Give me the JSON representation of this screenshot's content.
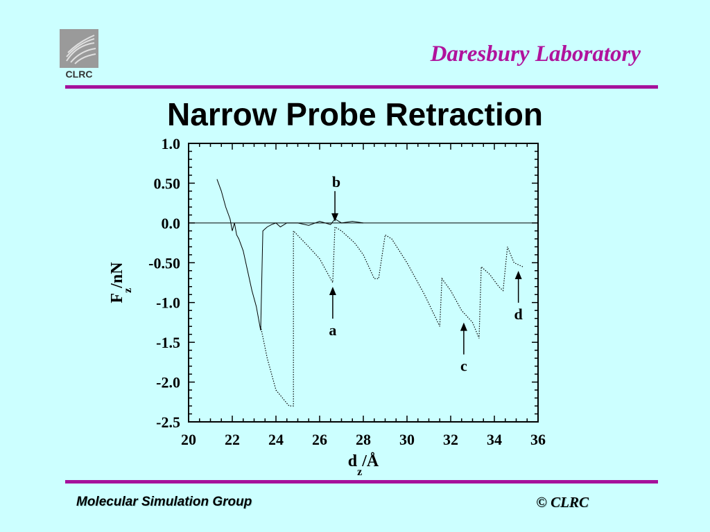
{
  "header": {
    "logo_text": "CLRC",
    "organization": "Daresbury Laboratory"
  },
  "page_title": "Narrow Probe Retraction",
  "footer": {
    "group": "Molecular Simulation Group",
    "copyright": "© CLRC"
  },
  "chart_data": {
    "type": "line",
    "xlabel": "d",
    "xlabel_sub": "z",
    "xlabel_unit": "/Å",
    "ylabel": "F",
    "ylabel_sub": "z",
    "ylabel_unit": "/nN",
    "xlim": [
      20,
      36
    ],
    "ylim": [
      -2.5,
      1.0
    ],
    "x_ticks": [
      20,
      22,
      24,
      26,
      28,
      30,
      32,
      34,
      36
    ],
    "x_tick_labels": [
      "20",
      "22",
      "24",
      "26",
      "28",
      "30",
      "32",
      "34",
      "36"
    ],
    "y_ticks": [
      1.0,
      0.5,
      0.0,
      -0.5,
      -1.0,
      -1.5,
      -2.0,
      -2.5
    ],
    "y_tick_labels": [
      "1.0",
      "0.50",
      "0.0",
      "-0.50",
      "-1.0",
      "-1.5",
      "-2.0",
      "-2.5"
    ],
    "zero_line": true,
    "series": [
      {
        "style": "solid",
        "points": [
          [
            21.3,
            0.55
          ],
          [
            21.5,
            0.4
          ],
          [
            21.7,
            0.2
          ],
          [
            21.9,
            0.05
          ],
          [
            22.0,
            -0.1
          ],
          [
            22.1,
            0.0
          ],
          [
            22.2,
            -0.15
          ],
          [
            22.3,
            -0.2
          ],
          [
            22.5,
            -0.35
          ],
          [
            22.7,
            -0.6
          ],
          [
            22.9,
            -0.85
          ],
          [
            23.1,
            -1.05
          ],
          [
            23.3,
            -1.35
          ],
          [
            23.4,
            -0.1
          ],
          [
            23.6,
            -0.05
          ],
          [
            23.8,
            -0.02
          ],
          [
            24.0,
            0.0
          ],
          [
            24.2,
            -0.05
          ],
          [
            24.5,
            0.0
          ],
          [
            25.0,
            0.0
          ],
          [
            25.5,
            -0.03
          ],
          [
            26.0,
            0.02
          ],
          [
            26.5,
            -0.02
          ],
          [
            26.7,
            0.05
          ],
          [
            27.0,
            0.0
          ],
          [
            27.5,
            0.02
          ],
          [
            28.0,
            0.0
          ]
        ]
      },
      {
        "style": "dotted",
        "points": [
          [
            23.3,
            -1.3
          ],
          [
            23.6,
            -1.7
          ],
          [
            24.0,
            -2.1
          ],
          [
            24.3,
            -2.2
          ],
          [
            24.6,
            -2.3
          ],
          [
            24.8,
            -2.3
          ],
          [
            24.8,
            -0.1
          ],
          [
            25.5,
            -0.3
          ],
          [
            26.0,
            -0.45
          ],
          [
            26.6,
            -0.75
          ],
          [
            26.7,
            -0.05
          ],
          [
            27.0,
            -0.1
          ],
          [
            27.6,
            -0.25
          ],
          [
            28.0,
            -0.4
          ],
          [
            28.5,
            -0.7
          ],
          [
            28.7,
            -0.7
          ],
          [
            29.0,
            -0.15
          ],
          [
            29.3,
            -0.2
          ],
          [
            30.0,
            -0.5
          ],
          [
            30.8,
            -0.9
          ],
          [
            31.5,
            -1.3
          ],
          [
            31.6,
            -0.7
          ],
          [
            32.0,
            -0.85
          ],
          [
            32.5,
            -1.1
          ],
          [
            33.0,
            -1.25
          ],
          [
            33.3,
            -1.45
          ],
          [
            33.4,
            -0.55
          ],
          [
            33.8,
            -0.65
          ],
          [
            34.2,
            -0.8
          ],
          [
            34.4,
            -0.85
          ],
          [
            34.6,
            -0.3
          ],
          [
            34.9,
            -0.5
          ],
          [
            35.3,
            -0.55
          ]
        ]
      }
    ],
    "annotations": [
      {
        "label": "b",
        "x": 26.7,
        "y": 0.0,
        "arrow": "down"
      },
      {
        "label": "a",
        "x": 26.6,
        "y": -0.75,
        "arrow": "up"
      },
      {
        "label": "c",
        "x": 32.6,
        "y": -1.2,
        "arrow": "up"
      },
      {
        "label": "d",
        "x": 35.1,
        "y": -0.55,
        "arrow": "up"
      }
    ]
  }
}
